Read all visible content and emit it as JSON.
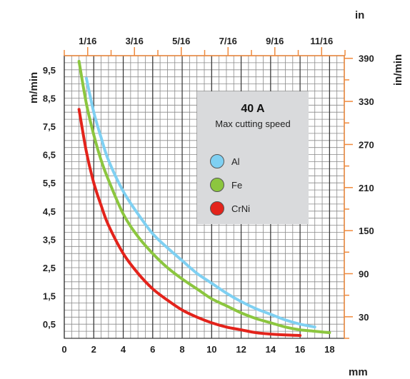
{
  "chart_data": {
    "type": "line",
    "title": "40 A",
    "subtitle": "Max cutting speed",
    "x_unit_bottom": "mm",
    "x_unit_top": "in",
    "y_unit_left": "m/min",
    "y_unit_right": "in/min",
    "x_ticks": [
      "0",
      "2",
      "4",
      "6",
      "8",
      "10",
      "12",
      "14",
      "16",
      "18"
    ],
    "x_top_ticks": [
      "1/16",
      "3/16",
      "5/16",
      "7/16",
      "9/16",
      "11/16"
    ],
    "y_ticks": [
      "0,5",
      "1,5",
      "2,5",
      "3,5",
      "4,5",
      "5,5",
      "6,5",
      "7,5",
      "8,5",
      "9,5"
    ],
    "y_right_ticks": [
      "30",
      "90",
      "150",
      "210",
      "270",
      "330",
      "390"
    ],
    "xlim": [
      0,
      19
    ],
    "ylim": [
      0,
      10
    ],
    "grid": true,
    "legend_position": "upper-right",
    "series": [
      {
        "name": "Al",
        "color": "#7fd0f2",
        "x": [
          1.5,
          2,
          2.5,
          3,
          4,
          5,
          6,
          7,
          8,
          9,
          10,
          11,
          12,
          13,
          14,
          15,
          16,
          17
        ],
        "y": [
          9.2,
          8.0,
          7.1,
          6.3,
          5.2,
          4.4,
          3.7,
          3.2,
          2.75,
          2.3,
          1.95,
          1.6,
          1.3,
          1.05,
          0.85,
          0.65,
          0.5,
          0.4
        ]
      },
      {
        "name": "Fe",
        "color": "#8cc63f",
        "x": [
          1,
          1.5,
          2,
          2.5,
          3,
          4,
          5,
          6,
          7,
          8,
          9,
          10,
          11,
          12,
          13,
          14,
          15,
          16,
          17,
          18
        ],
        "y": [
          9.8,
          8.3,
          7.2,
          6.3,
          5.6,
          4.4,
          3.6,
          3.0,
          2.5,
          2.1,
          1.75,
          1.4,
          1.15,
          0.9,
          0.7,
          0.55,
          0.4,
          0.3,
          0.25,
          0.2
        ]
      },
      {
        "name": "CrNi",
        "color": "#e3231b",
        "x": [
          1,
          1.5,
          2,
          2.5,
          3,
          4,
          5,
          6,
          7,
          8,
          9,
          10,
          11,
          12,
          13,
          14,
          15,
          16
        ],
        "y": [
          8.1,
          6.6,
          5.5,
          4.7,
          4.0,
          3.0,
          2.3,
          1.75,
          1.35,
          1.0,
          0.75,
          0.55,
          0.4,
          0.3,
          0.2,
          0.15,
          0.12,
          0.1
        ]
      }
    ]
  }
}
